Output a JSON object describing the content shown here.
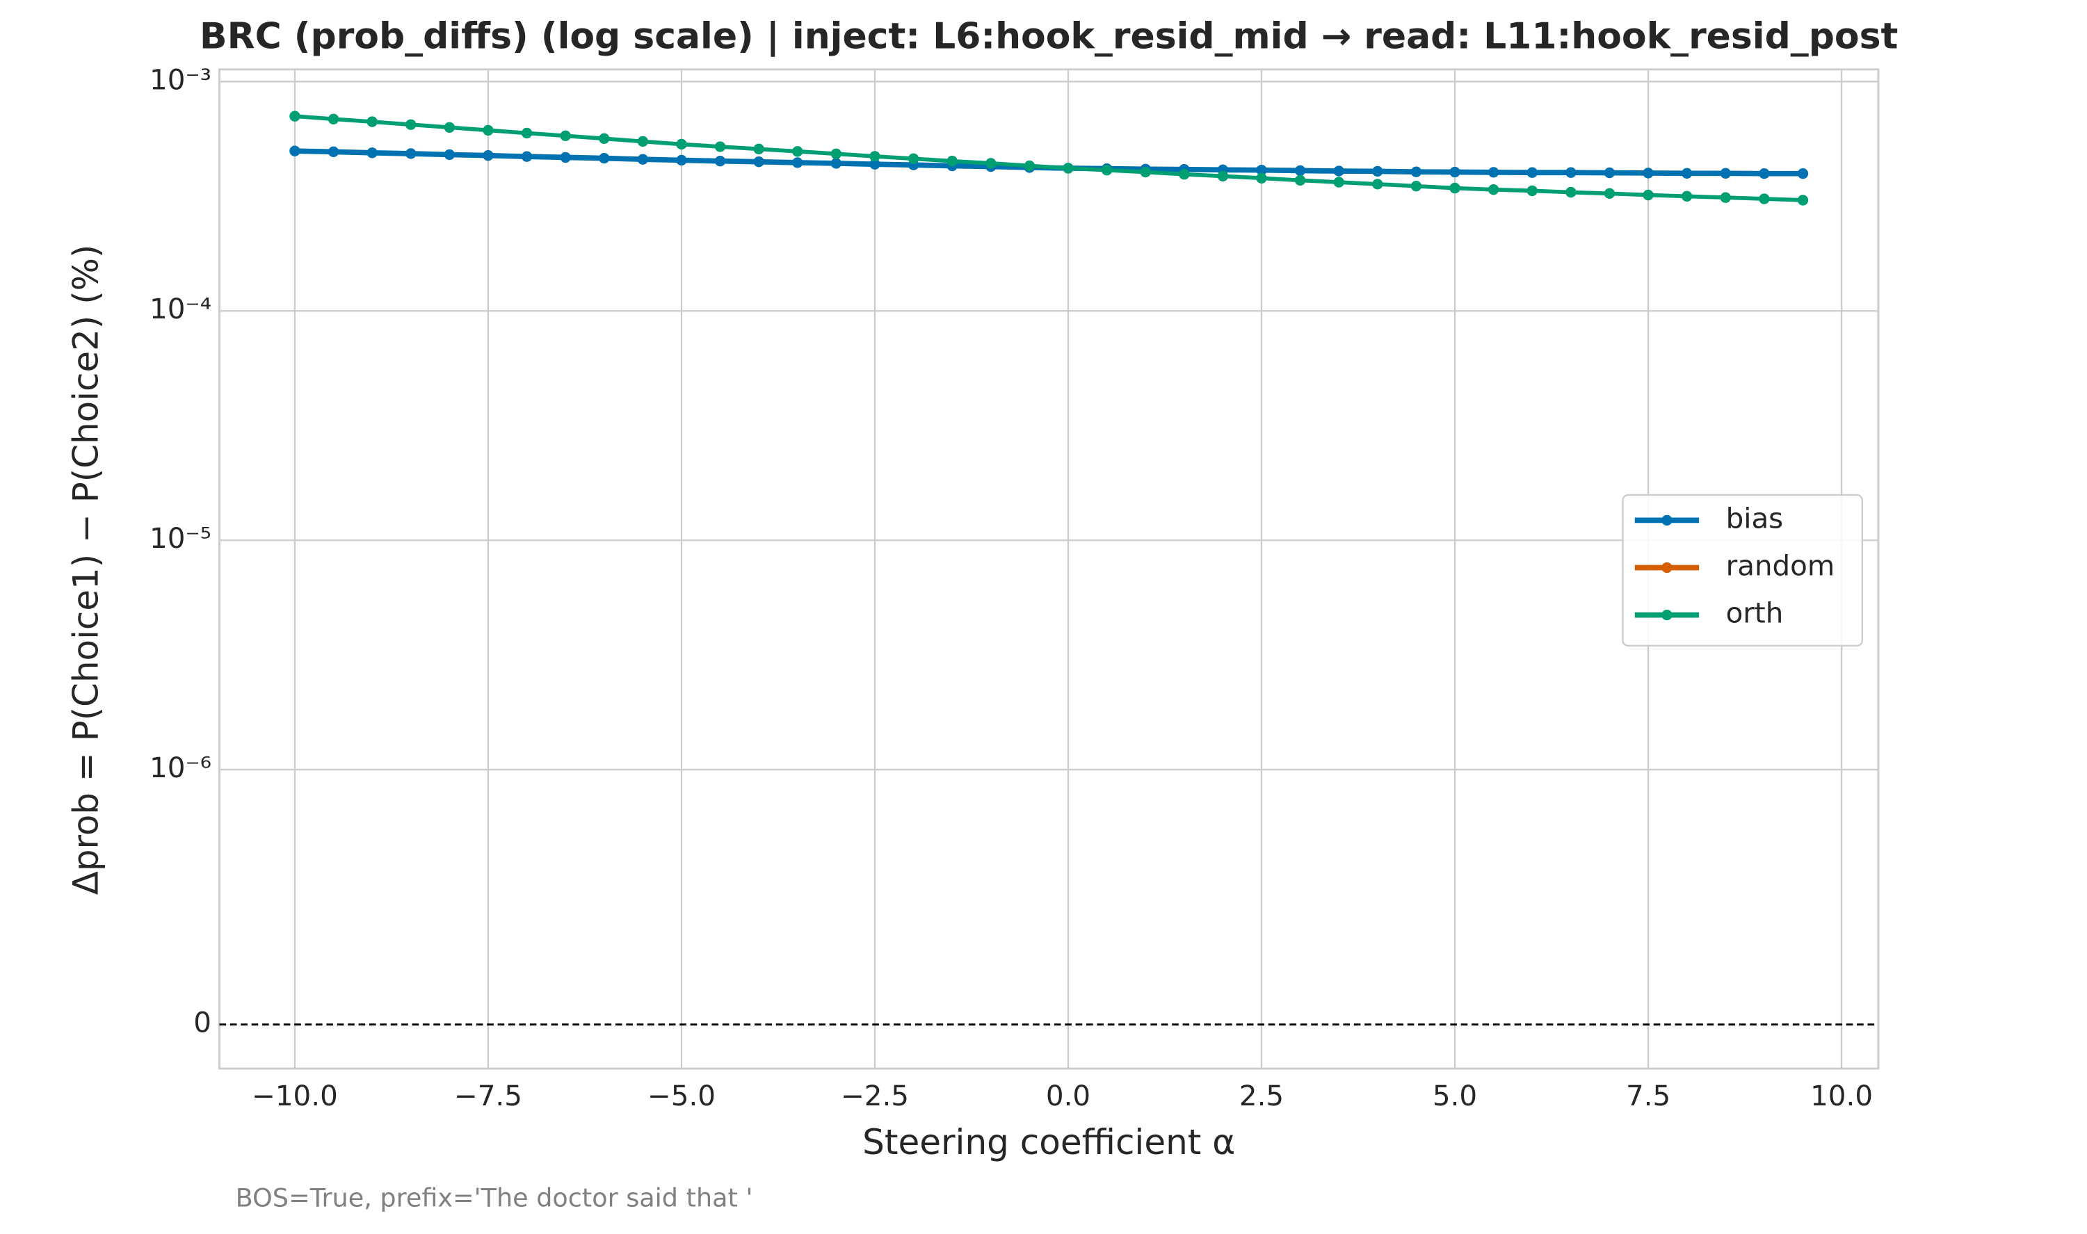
{
  "chart_data": {
    "type": "line",
    "title": "BRC (prob_diffs) (log scale) | inject: L6:hook_resid_mid → read: L11:hook_resid_post",
    "xlabel": "Steering coefficient α",
    "ylabel": "Δprob = P(Choice1) − P(Choice2) (%)",
    "footnote": "BOS=True, prefix='The doctor said that '",
    "yscale": "symlog",
    "linthresh": 1e-06,
    "linscale": 1,
    "grid": true,
    "legend": "center right",
    "zero_line": true,
    "x": [
      -10,
      -9.5,
      -9,
      -8.5,
      -8,
      -7.5,
      -7,
      -6.5,
      -6,
      -5.5,
      -5,
      -4.5,
      -4,
      -3.5,
      -3,
      -2.5,
      -2,
      -1.5,
      -1,
      -0.5,
      0,
      0.5,
      1,
      1.5,
      2,
      2.5,
      3,
      3.5,
      4,
      4.5,
      5,
      5.5,
      6,
      6.5,
      7,
      7.5,
      8,
      8.5,
      9,
      9.5
    ],
    "series": [
      {
        "name": "bias",
        "color": "#0072b2",
        "values": [
          0.000498,
          0.000494,
          0.000489,
          0.000485,
          0.00048,
          0.000476,
          0.000471,
          0.000467,
          0.000463,
          0.000458,
          0.000454,
          0.00045,
          0.000447,
          0.000443,
          0.00044,
          0.000436,
          0.000433,
          0.000429,
          0.000426,
          0.000422,
          0.000419,
          0.000417,
          0.000415,
          0.000414,
          0.000412,
          0.000411,
          0.000409,
          0.000407,
          0.000406,
          0.000404,
          0.000403,
          0.000402,
          0.000401,
          0.000401,
          0.0004,
          0.000399,
          0.000398,
          0.000398,
          0.000397,
          0.000397
        ]
      },
      {
        "name": "random",
        "color": "#d55e00",
        "values": [
          null,
          null,
          null,
          null,
          null,
          null,
          null,
          null,
          null,
          null,
          null,
          null,
          null,
          null,
          null,
          null,
          null,
          null,
          null,
          null,
          null,
          null,
          null,
          null,
          null,
          null,
          null,
          null,
          null,
          null,
          null,
          null,
          null,
          null,
          null,
          null,
          null,
          null,
          null,
          null
        ]
      },
      {
        "name": "orth",
        "color": "#009e73",
        "values": [
          0.000706,
          0.000686,
          0.000668,
          0.000649,
          0.000631,
          0.000613,
          0.000596,
          0.00058,
          0.000564,
          0.000548,
          0.000533,
          0.00052,
          0.000508,
          0.000496,
          0.000484,
          0.000472,
          0.000461,
          0.00045,
          0.00044,
          0.000429,
          0.000419,
          0.000411,
          0.000403,
          0.000394,
          0.000387,
          0.000379,
          0.000371,
          0.000364,
          0.000357,
          0.00035,
          0.000343,
          0.000338,
          0.000334,
          0.000329,
          0.000325,
          0.00032,
          0.000316,
          0.000312,
          0.000308,
          0.000304
        ]
      }
    ],
    "xlim": [
      -10.975,
      10.475
    ],
    "xticks": [
      {
        "value": -10,
        "label": "−10.0"
      },
      {
        "value": -7.5,
        "label": "−7.5"
      },
      {
        "value": -5,
        "label": "−5.0"
      },
      {
        "value": -2.5,
        "label": "−2.5"
      },
      {
        "value": 0,
        "label": "0.0"
      },
      {
        "value": 2.5,
        "label": "2.5"
      },
      {
        "value": 5,
        "label": "5.0"
      },
      {
        "value": 7.5,
        "label": "7.5"
      },
      {
        "value": 10,
        "label": "10.0"
      }
    ],
    "ylim": [
      -1.73e-07,
      0.00113
    ],
    "yticks": [
      0,
      {
        "value": 1e-06,
        "label": "10⁻⁶"
      },
      {
        "value": 1e-05,
        "label": "10⁻⁵"
      },
      {
        "value": 0.0001,
        "label": "10⁻⁴"
      },
      {
        "value": 0.001,
        "label": "10⁻³"
      }
    ]
  }
}
